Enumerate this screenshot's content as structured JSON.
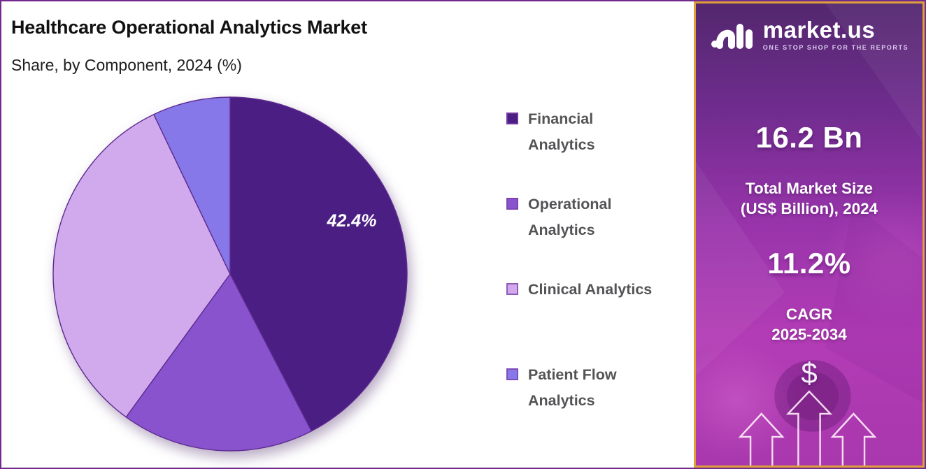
{
  "header": {
    "title": "Healthcare Operational Analytics Market",
    "subtitle": "Share, by Component, 2024 (%)"
  },
  "chart_data": {
    "type": "pie",
    "title": "Healthcare Operational Analytics Market",
    "subtitle": "Share, by Component, 2024 (%)",
    "categories": [
      "Financial Analytics",
      "Operational Analytics",
      "Clinical Analytics",
      "Patient Flow Analytics"
    ],
    "values": [
      42.4,
      17.6,
      32.9,
      7.1
    ],
    "unit": "%",
    "colors": [
      "#4a1e82",
      "#8a53ce",
      "#d0aaec",
      "#8678e9"
    ],
    "data_labels": [
      "42.4%",
      "",
      "",
      ""
    ],
    "start_angle_deg": 0,
    "direction": "clockwise",
    "legend_position": "right"
  },
  "legend": {
    "items": [
      {
        "label": "Financial Analytics",
        "lines": [
          "Financial",
          "Analytics"
        ],
        "color": "#4a1e82"
      },
      {
        "label": "Operational Analytics",
        "lines": [
          "Operational",
          "Analytics"
        ],
        "color": "#8a53ce"
      },
      {
        "label": "Clinical Analytics",
        "lines": [
          "Clinical Analytics"
        ],
        "color": "#d0aaec"
      },
      {
        "label": "Patient Flow Analytics",
        "lines": [
          "Patient Flow",
          "Analytics"
        ],
        "color": "#8678e9"
      }
    ]
  },
  "side_panel": {
    "brand": {
      "name": "market.us",
      "tagline": "ONE STOP SHOP FOR THE REPORTS"
    },
    "market_size": {
      "value": "16.2 Bn",
      "label_line1": "Total Market Size",
      "label_line2": "(US$ Billion), 2024"
    },
    "cagr": {
      "value": "11.2%",
      "label_line1": "CAGR",
      "label_line2": "2025-2034"
    },
    "dollar_symbol": "$"
  },
  "colors": {
    "frame_border": "#722a8c",
    "panel_border": "#dfa03c",
    "pie_stroke": "#5e2b90",
    "legend_text": "#545457",
    "pie_label": "#ffffff"
  }
}
